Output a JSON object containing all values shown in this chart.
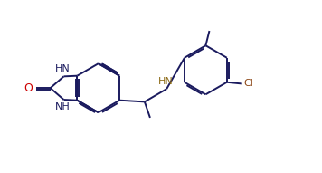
{
  "bg_color": "#ffffff",
  "line_color": "#1a1a5e",
  "text_color": "#1a1a5e",
  "O_color": "#cc0000",
  "Cl_color": "#8B4513",
  "HN_color": "#8B6914",
  "figsize": [
    3.56,
    1.91
  ],
  "dpi": 100,
  "line_width": 1.4,
  "font_size": 8.0,
  "xlim": [
    0.0,
    10.5
  ],
  "ylim": [
    0.5,
    6.0
  ]
}
